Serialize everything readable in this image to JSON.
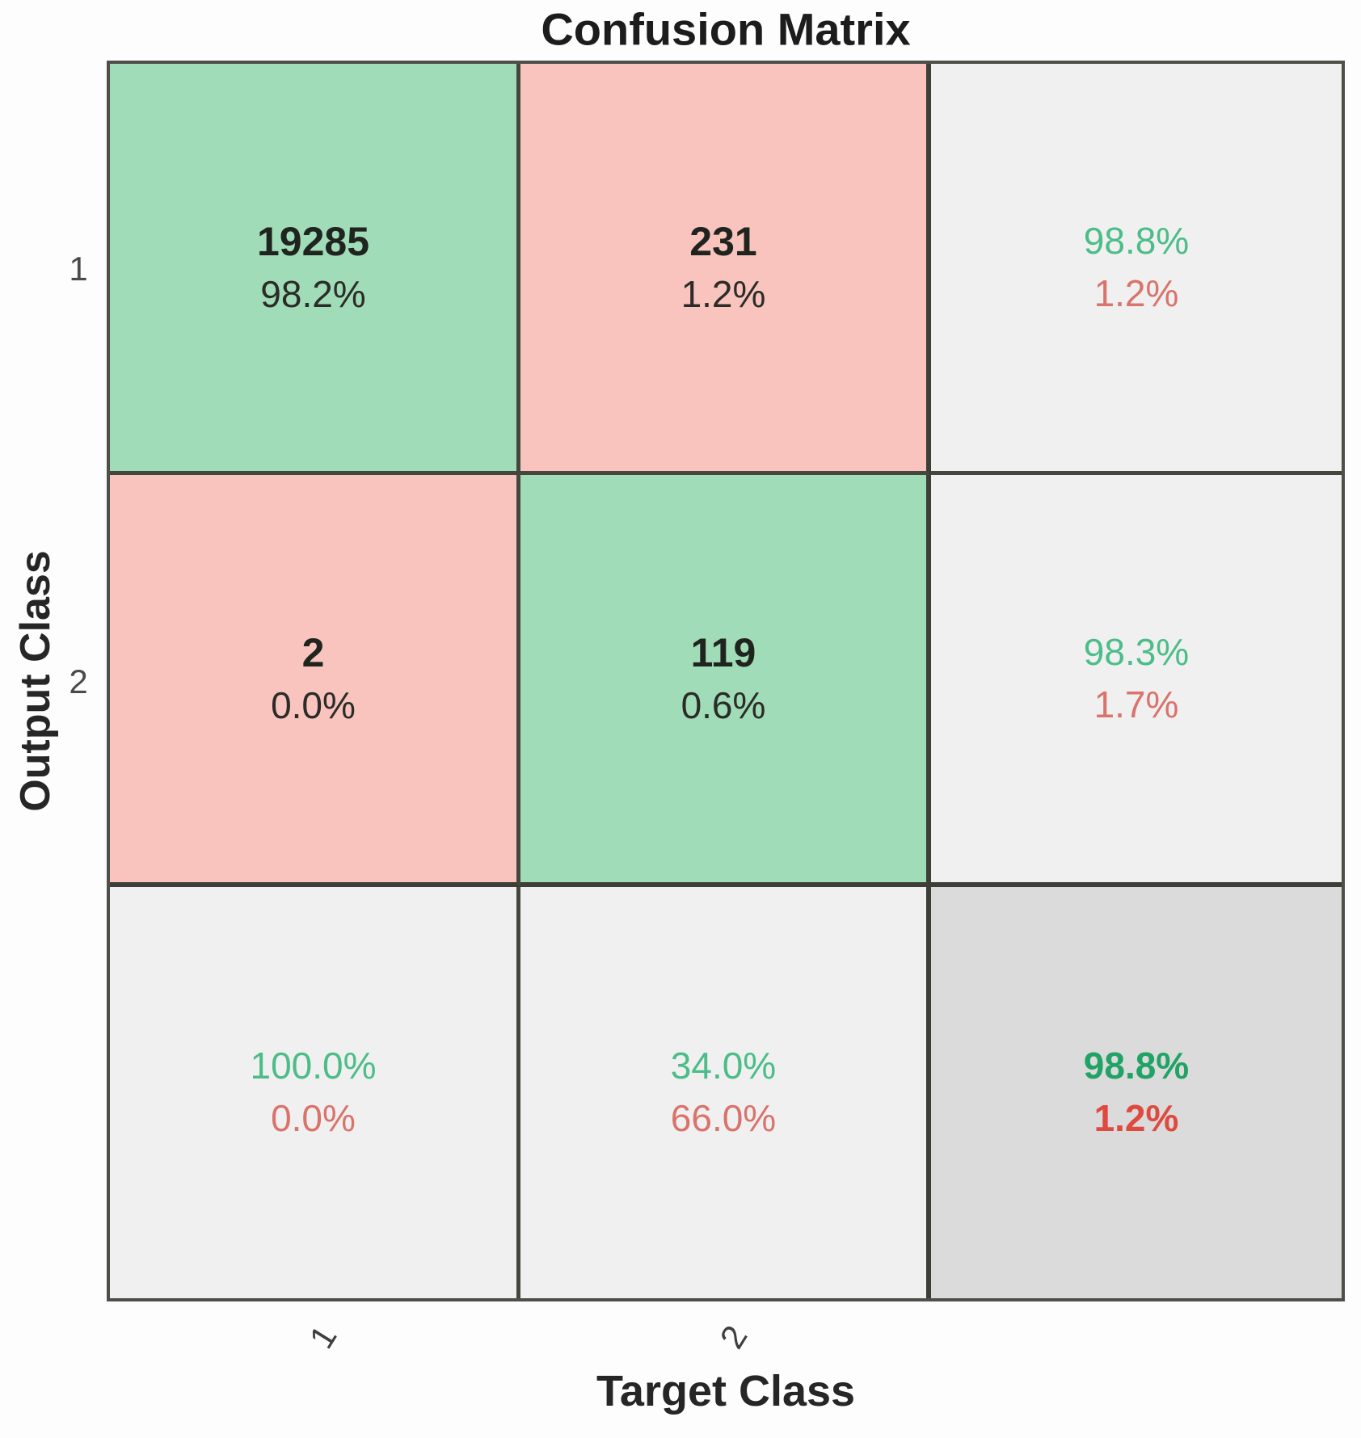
{
  "title": "Confusion Matrix",
  "axes": {
    "x": {
      "label": "Target Class",
      "ticks": [
        "1",
        "2"
      ]
    },
    "y": {
      "label": "Output Class",
      "ticks": [
        "1",
        "2"
      ]
    }
  },
  "cells": {
    "r1c1": {
      "kind": "correct",
      "line1": "19285",
      "line2": "98.2%"
    },
    "r1c2": {
      "kind": "incorrect",
      "line1": "231",
      "line2": "1.2%"
    },
    "r1c3": {
      "kind": "summary",
      "line1": "98.8%",
      "line2": "1.2%"
    },
    "r2c1": {
      "kind": "incorrect",
      "line1": "2",
      "line2": "0.0%"
    },
    "r2c2": {
      "kind": "correct",
      "line1": "119",
      "line2": "0.6%"
    },
    "r2c3": {
      "kind": "summary",
      "line1": "98.3%",
      "line2": "1.7%"
    },
    "r3c1": {
      "kind": "summary",
      "line1": "100.0%",
      "line2": "0.0%"
    },
    "r3c2": {
      "kind": "summary",
      "line1": "34.0%",
      "line2": "66.0%"
    },
    "r3c3": {
      "kind": "summary-total",
      "line1": "98.8%",
      "line2": "1.2%"
    }
  },
  "colors": {
    "correct_cell": "#a0dcb8",
    "incorrect_cell": "#f9c4bd",
    "summary_cell": "#f0f0f0",
    "total_cell": "#dbdbdb",
    "green_text": "#4cbd88",
    "red_text": "#d9736b",
    "bold_green_text": "#21a365",
    "bold_red_text": "#de4a40",
    "dark_text": "#20241f",
    "grid_line": "#45463e"
  },
  "chart_data": {
    "type": "heatmap",
    "subtype": "confusion-matrix",
    "title": "Confusion Matrix",
    "xlabel": "Target Class",
    "ylabel": "Output Class",
    "classes": [
      "1",
      "2"
    ],
    "counts": [
      [
        19285,
        231
      ],
      [
        2,
        119
      ]
    ],
    "percent_of_total": [
      [
        "98.2%",
        "1.2%"
      ],
      [
        "0.0%",
        "0.6%"
      ]
    ],
    "row_summary_output_class": [
      {
        "correct": "98.8%",
        "incorrect": "1.2%"
      },
      {
        "correct": "98.3%",
        "incorrect": "1.7%"
      }
    ],
    "column_summary_target_class": [
      {
        "correct": "100.0%",
        "incorrect": "0.0%"
      },
      {
        "correct": "34.0%",
        "incorrect": "66.0%"
      }
    ],
    "overall_accuracy": {
      "correct": "98.8%",
      "incorrect": "1.2%"
    },
    "grid": "on",
    "legend_position": "none"
  }
}
